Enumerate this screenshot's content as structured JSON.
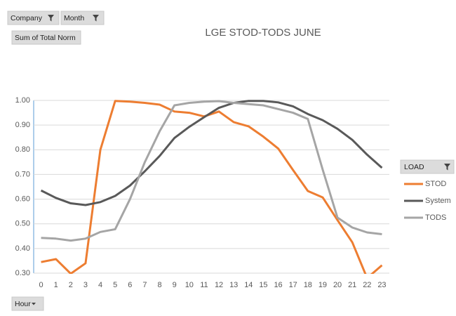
{
  "chart_data": {
    "type": "line",
    "title": "LGE STOD-TODS JUNE",
    "filter_buttons": [
      "Company",
      "Month"
    ],
    "value_button": "Sum of Total Norm",
    "axis_button": "Hour",
    "legend_title": "LOAD",
    "categories": [
      "0",
      "1",
      "2",
      "3",
      "4",
      "5",
      "6",
      "7",
      "8",
      "9",
      "10",
      "11",
      "12",
      "13",
      "14",
      "15",
      "16",
      "17",
      "18",
      "19",
      "20",
      "21",
      "22",
      "23"
    ],
    "series": [
      {
        "name": "STOD",
        "color": "#ed7d31",
        "values": [
          0.345,
          0.357,
          0.298,
          0.34,
          0.8,
          0.998,
          0.995,
          0.99,
          0.983,
          0.955,
          0.95,
          0.935,
          0.955,
          0.912,
          0.895,
          0.853,
          0.805,
          0.718,
          0.633,
          0.607,
          0.515,
          0.425,
          0.28,
          0.332
        ]
      },
      {
        "name": "System",
        "color": "#595959",
        "values": [
          0.635,
          0.605,
          0.583,
          0.576,
          0.588,
          0.613,
          0.655,
          0.713,
          0.775,
          0.848,
          0.893,
          0.932,
          0.97,
          0.99,
          0.998,
          0.998,
          0.992,
          0.976,
          0.945,
          0.92,
          0.885,
          0.84,
          0.78,
          0.727
        ]
      },
      {
        "name": "TODS",
        "color": "#a5a5a5",
        "values": [
          0.443,
          0.44,
          0.432,
          0.44,
          0.467,
          0.478,
          0.6,
          0.75,
          0.875,
          0.98,
          0.99,
          0.995,
          0.997,
          0.99,
          0.985,
          0.98,
          0.965,
          0.95,
          0.925,
          0.72,
          0.525,
          0.485,
          0.465,
          0.458
        ]
      }
    ],
    "ylim": [
      0.3,
      1.0
    ],
    "yticks": [
      {
        "value": 0.3,
        "label": "0.30"
      },
      {
        "value": 0.4,
        "label": "0.40"
      },
      {
        "value": 0.5,
        "label": "0.50"
      },
      {
        "value": 0.6,
        "label": "0.60"
      },
      {
        "value": 0.7,
        "label": "0.70"
      },
      {
        "value": 0.8,
        "label": "0.80"
      },
      {
        "value": 0.9,
        "label": "0.90"
      },
      {
        "value": 1.0,
        "label": "1.00"
      }
    ],
    "grid": true,
    "legend": "right"
  }
}
